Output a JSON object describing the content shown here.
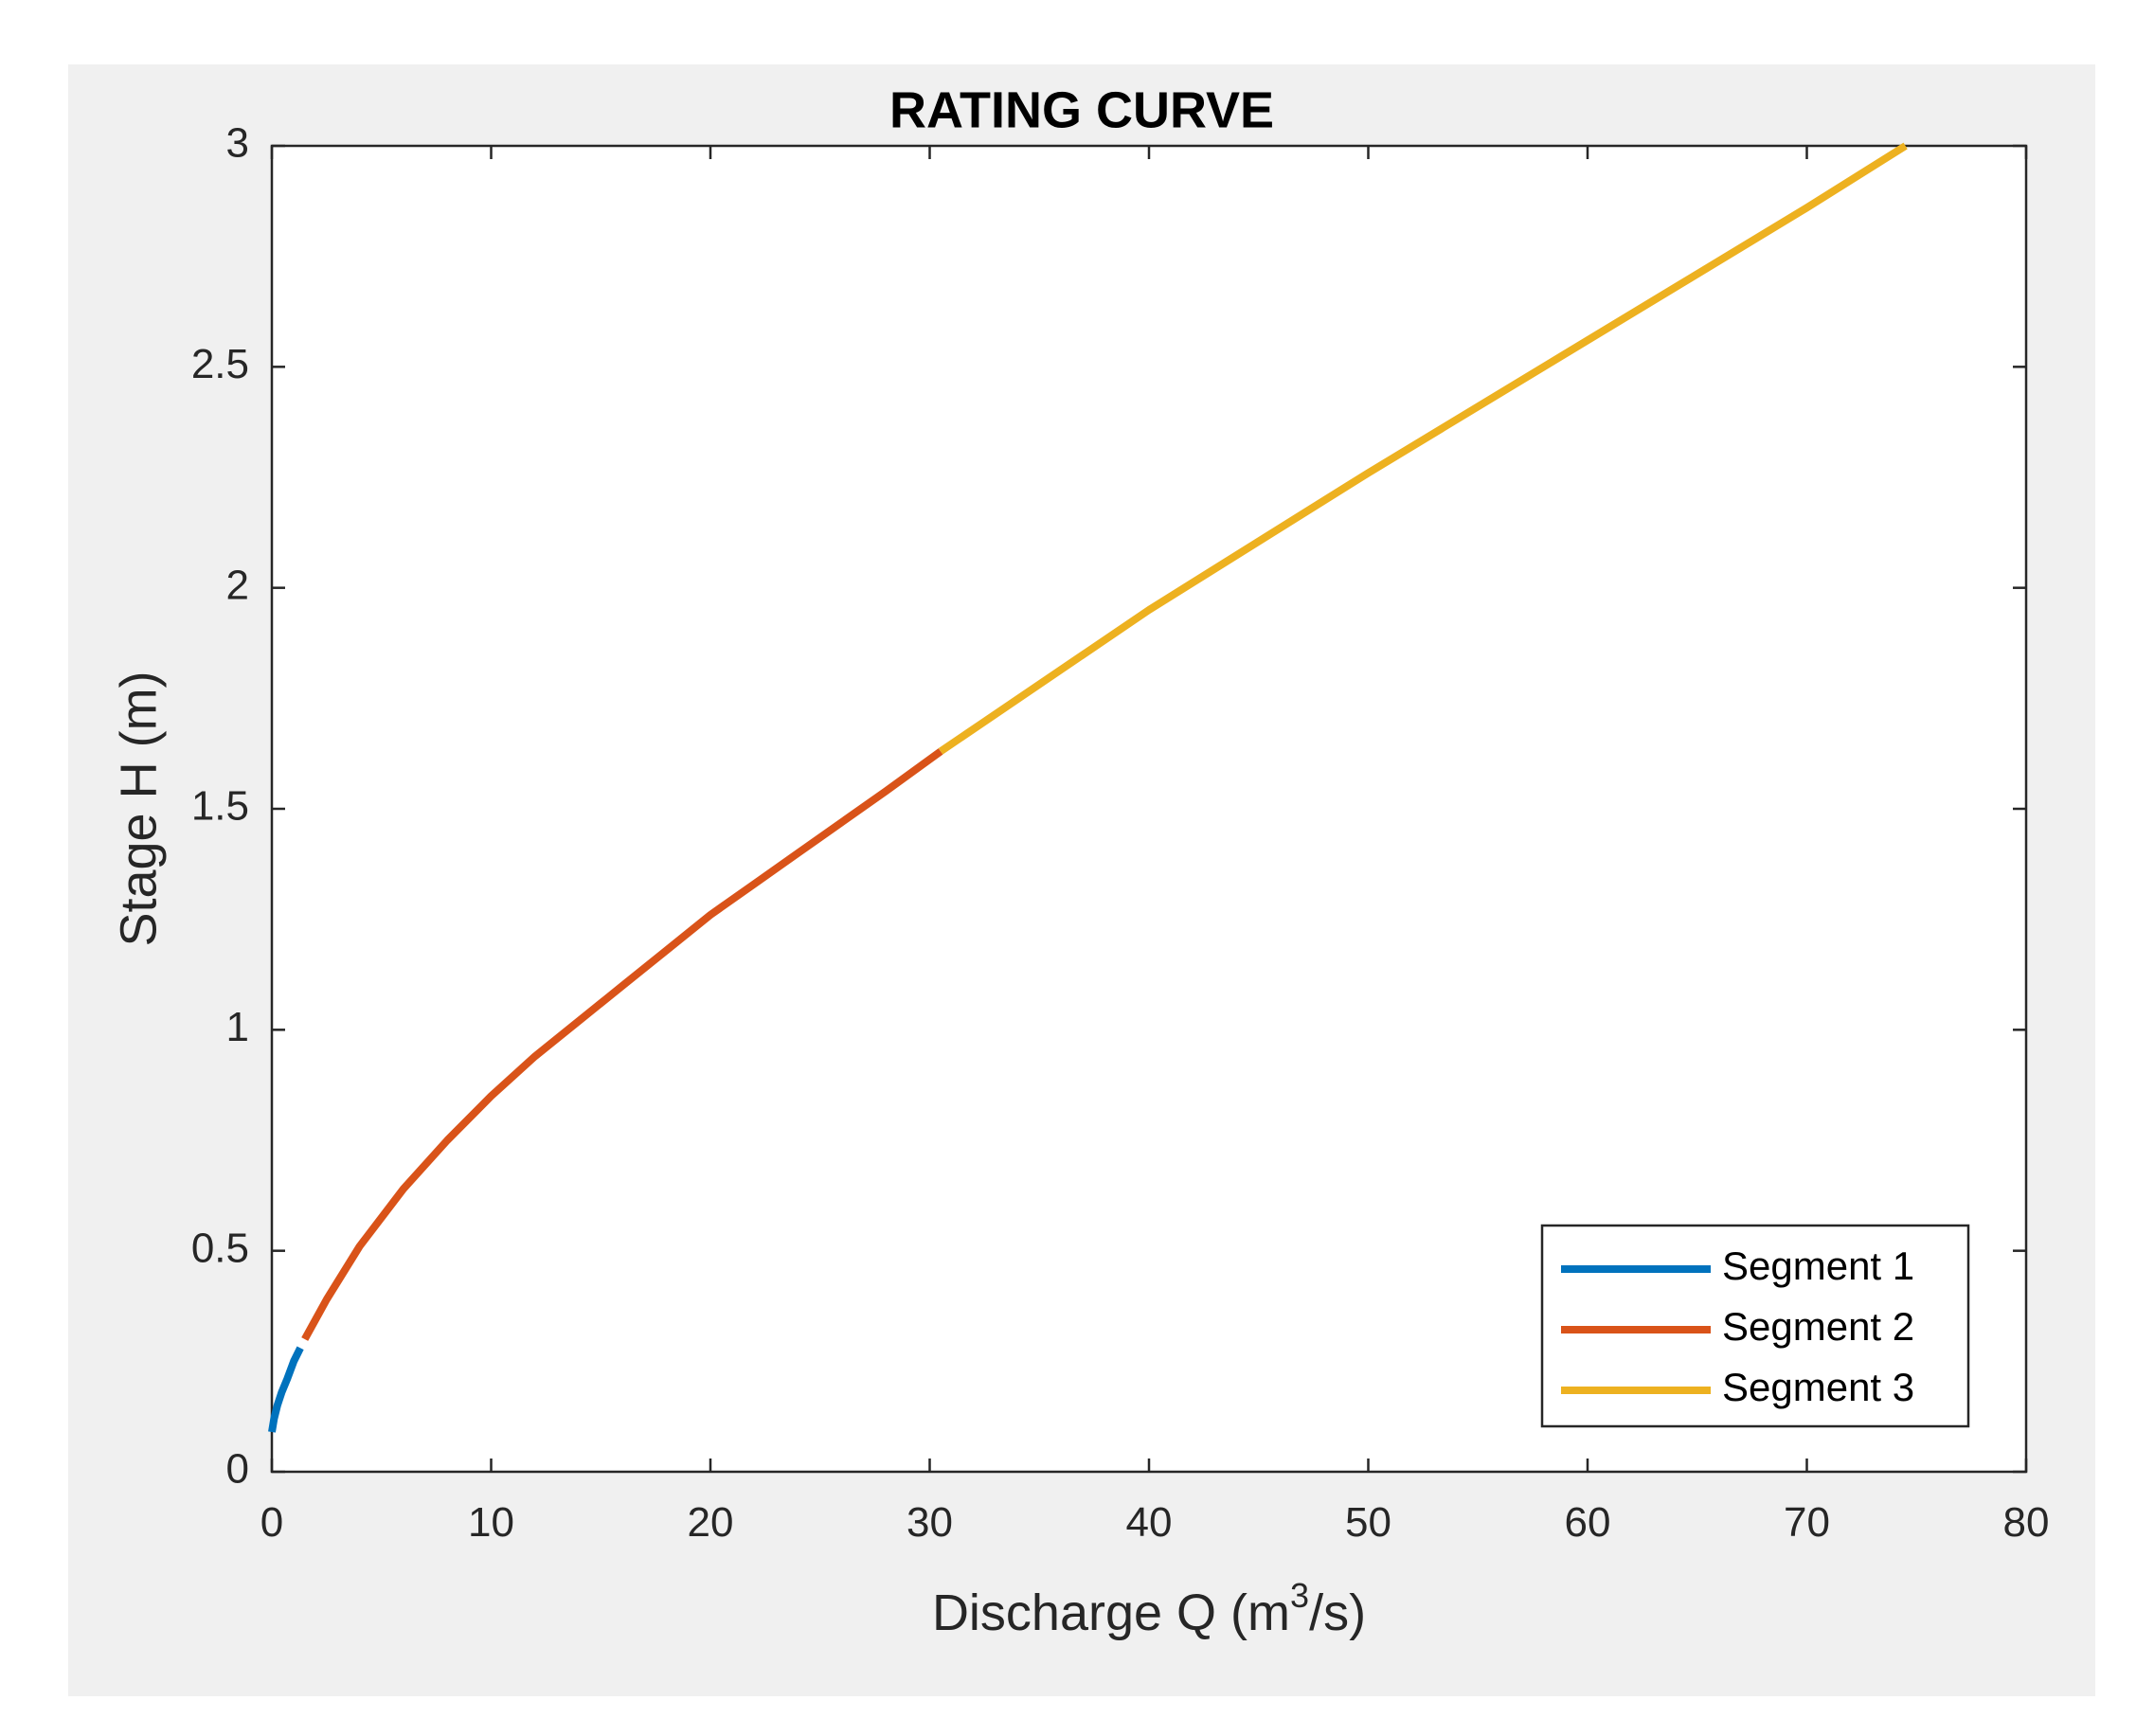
{
  "chart_data": {
    "type": "line",
    "title": "RATING CURVE",
    "xlabel": {
      "prefix": "Discharge Q (m",
      "superscript": "3",
      "suffix": "/s)"
    },
    "ylabel": "Stage H (m)",
    "xlim": [
      0,
      80
    ],
    "ylim": [
      0,
      3
    ],
    "xticks": [
      0,
      10,
      20,
      30,
      40,
      50,
      60,
      70,
      80
    ],
    "yticks": [
      0,
      0.5,
      1,
      1.5,
      2,
      2.5,
      3
    ],
    "xtick_labels": [
      "0",
      "10",
      "20",
      "30",
      "40",
      "50",
      "60",
      "70",
      "80"
    ],
    "ytick_labels": [
      "0",
      "0.5",
      "1",
      "1.5",
      "2",
      "2.5",
      "3"
    ],
    "grid": false,
    "legend_position": "bottom-right",
    "series": [
      {
        "name": "Segment 1",
        "color": "#0072BD",
        "x": [
          0.0,
          0.1,
          0.25,
          0.45,
          0.7,
          1.0,
          1.3
        ],
        "y": [
          0.09,
          0.12,
          0.15,
          0.18,
          0.21,
          0.25,
          0.28
        ]
      },
      {
        "name": "Segment 2",
        "color": "#D95319",
        "x": [
          1.5,
          2.5,
          4.0,
          6.0,
          8.0,
          10.0,
          12.0,
          14.0,
          16.0,
          18.0,
          20.0,
          22.0,
          24.0,
          26.0,
          28.0,
          30.5
        ],
        "y": [
          0.3,
          0.39,
          0.51,
          0.64,
          0.75,
          0.85,
          0.94,
          1.02,
          1.1,
          1.18,
          1.26,
          1.33,
          1.4,
          1.47,
          1.54,
          1.63
        ]
      },
      {
        "name": "Segment 3",
        "color": "#EDB120",
        "x": [
          30.5,
          40.0,
          50.0,
          60.0,
          70.0,
          74.5
        ],
        "y": [
          1.63,
          1.95,
          2.26,
          2.56,
          2.86,
          3.0
        ]
      }
    ]
  }
}
